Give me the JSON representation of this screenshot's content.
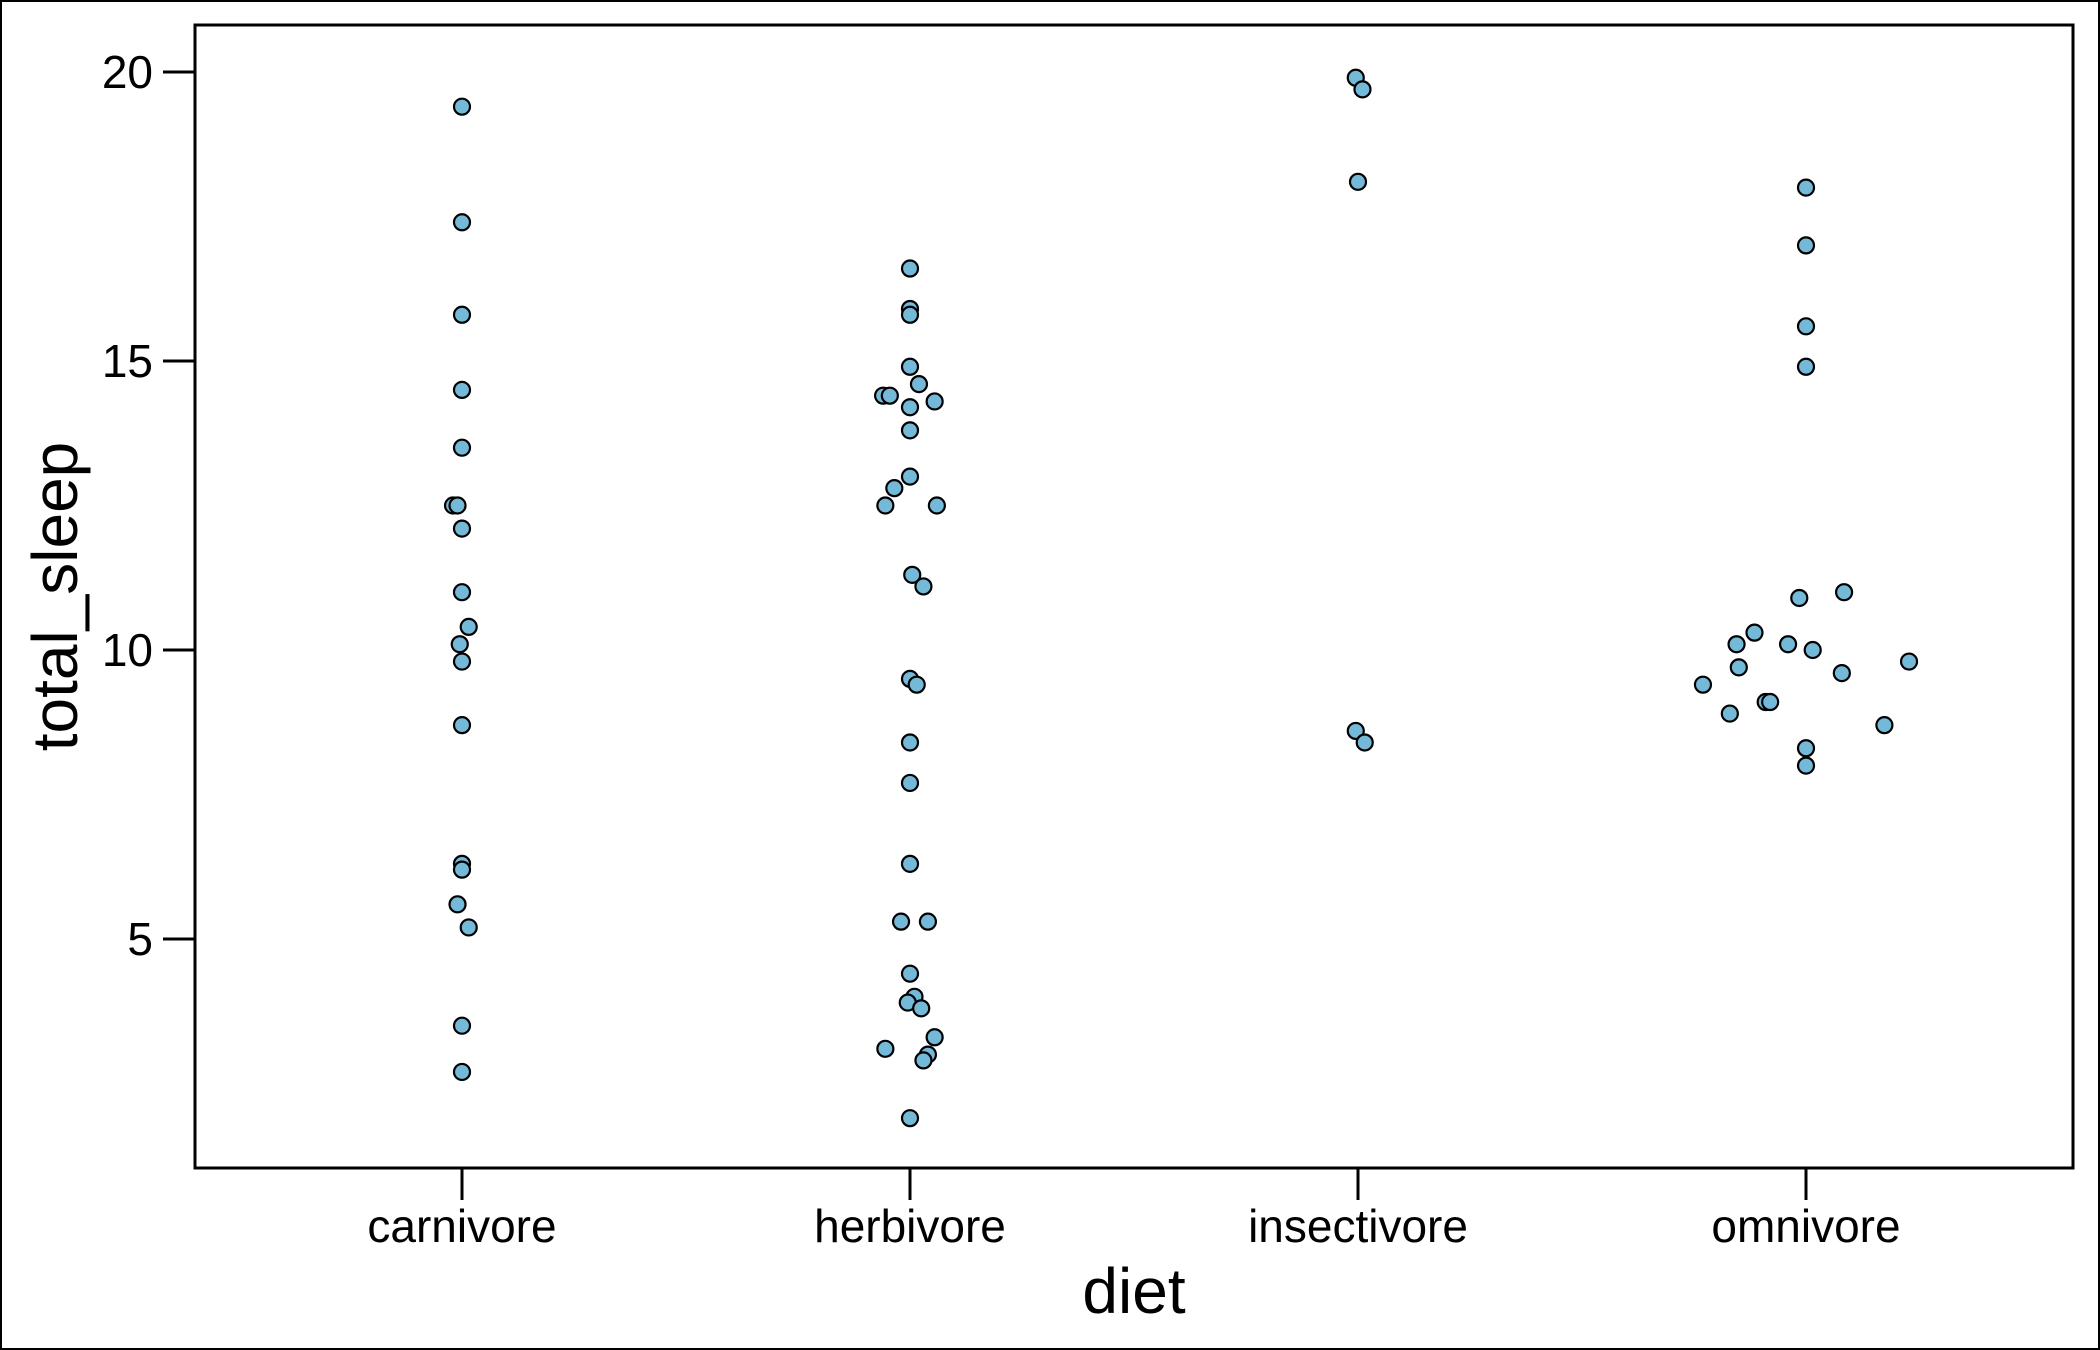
{
  "chart_data": {
    "type": "scatter",
    "xlabel": "diet",
    "ylabel": "total_sleep",
    "categories": [
      "carnivore",
      "herbivore",
      "insectivore",
      "omnivore"
    ],
    "yticks": [
      5,
      10,
      15,
      20
    ],
    "ylim": [
      1.1,
      20.9
    ],
    "grid": false,
    "legend": "none",
    "marker_color": "#74b9d8",
    "marker_edge_color": "#000000",
    "points": [
      {
        "category": "carnivore",
        "jitter": 0.0,
        "y": 19.4
      },
      {
        "category": "carnivore",
        "jitter": 0.0,
        "y": 17.4
      },
      {
        "category": "carnivore",
        "jitter": 0.0,
        "y": 15.8
      },
      {
        "category": "carnivore",
        "jitter": 0.0,
        "y": 14.5
      },
      {
        "category": "carnivore",
        "jitter": 0.0,
        "y": 13.5
      },
      {
        "category": "carnivore",
        "jitter": -0.02,
        "y": 12.5
      },
      {
        "category": "carnivore",
        "jitter": -0.01,
        "y": 12.5
      },
      {
        "category": "carnivore",
        "jitter": 0.0,
        "y": 12.1
      },
      {
        "category": "carnivore",
        "jitter": 0.0,
        "y": 11.0
      },
      {
        "category": "carnivore",
        "jitter": 0.015,
        "y": 10.4
      },
      {
        "category": "carnivore",
        "jitter": -0.005,
        "y": 10.1
      },
      {
        "category": "carnivore",
        "jitter": 0.0,
        "y": 9.8
      },
      {
        "category": "carnivore",
        "jitter": 0.0,
        "y": 8.7
      },
      {
        "category": "carnivore",
        "jitter": 0.0,
        "y": 6.3
      },
      {
        "category": "carnivore",
        "jitter": 0.0,
        "y": 6.2
      },
      {
        "category": "carnivore",
        "jitter": -0.01,
        "y": 5.6
      },
      {
        "category": "carnivore",
        "jitter": 0.015,
        "y": 5.2
      },
      {
        "category": "carnivore",
        "jitter": 0.0,
        "y": 3.5
      },
      {
        "category": "carnivore",
        "jitter": 0.0,
        "y": 2.7
      },
      {
        "category": "herbivore",
        "jitter": 0.0,
        "y": 16.6
      },
      {
        "category": "herbivore",
        "jitter": 0.0,
        "y": 15.9
      },
      {
        "category": "herbivore",
        "jitter": 0.0,
        "y": 15.8
      },
      {
        "category": "herbivore",
        "jitter": 0.0,
        "y": 14.9
      },
      {
        "category": "herbivore",
        "jitter": 0.02,
        "y": 14.6
      },
      {
        "category": "herbivore",
        "jitter": -0.06,
        "y": 14.4
      },
      {
        "category": "herbivore",
        "jitter": -0.045,
        "y": 14.4
      },
      {
        "category": "herbivore",
        "jitter": 0.055,
        "y": 14.3
      },
      {
        "category": "herbivore",
        "jitter": 0.0,
        "y": 14.2
      },
      {
        "category": "herbivore",
        "jitter": 0.0,
        "y": 13.8
      },
      {
        "category": "herbivore",
        "jitter": 0.0,
        "y": 13.0
      },
      {
        "category": "herbivore",
        "jitter": -0.035,
        "y": 12.8
      },
      {
        "category": "herbivore",
        "jitter": -0.055,
        "y": 12.5
      },
      {
        "category": "herbivore",
        "jitter": 0.06,
        "y": 12.5
      },
      {
        "category": "herbivore",
        "jitter": 0.005,
        "y": 11.3
      },
      {
        "category": "herbivore",
        "jitter": 0.03,
        "y": 11.1
      },
      {
        "category": "herbivore",
        "jitter": 0.0,
        "y": 9.5
      },
      {
        "category": "herbivore",
        "jitter": 0.015,
        "y": 9.4
      },
      {
        "category": "herbivore",
        "jitter": 0.0,
        "y": 8.4
      },
      {
        "category": "herbivore",
        "jitter": 0.0,
        "y": 7.7
      },
      {
        "category": "herbivore",
        "jitter": 0.0,
        "y": 6.3
      },
      {
        "category": "herbivore",
        "jitter": -0.02,
        "y": 5.3
      },
      {
        "category": "herbivore",
        "jitter": 0.04,
        "y": 5.3
      },
      {
        "category": "herbivore",
        "jitter": 0.0,
        "y": 4.4
      },
      {
        "category": "herbivore",
        "jitter": 0.01,
        "y": 4.0
      },
      {
        "category": "herbivore",
        "jitter": -0.005,
        "y": 3.9
      },
      {
        "category": "herbivore",
        "jitter": 0.025,
        "y": 3.8
      },
      {
        "category": "herbivore",
        "jitter": 0.055,
        "y": 3.3
      },
      {
        "category": "herbivore",
        "jitter": -0.055,
        "y": 3.1
      },
      {
        "category": "herbivore",
        "jitter": 0.04,
        "y": 3.0
      },
      {
        "category": "herbivore",
        "jitter": 0.03,
        "y": 2.9
      },
      {
        "category": "herbivore",
        "jitter": 0.0,
        "y": 1.9
      },
      {
        "category": "insectivore",
        "jitter": -0.005,
        "y": 19.9
      },
      {
        "category": "insectivore",
        "jitter": 0.01,
        "y": 19.7
      },
      {
        "category": "insectivore",
        "jitter": 0.0,
        "y": 18.1
      },
      {
        "category": "insectivore",
        "jitter": -0.005,
        "y": 8.6
      },
      {
        "category": "insectivore",
        "jitter": 0.015,
        "y": 8.4
      },
      {
        "category": "omnivore",
        "jitter": 0.0,
        "y": 18.0
      },
      {
        "category": "omnivore",
        "jitter": 0.0,
        "y": 17.0
      },
      {
        "category": "omnivore",
        "jitter": 0.0,
        "y": 15.6
      },
      {
        "category": "omnivore",
        "jitter": 0.0,
        "y": 14.9
      },
      {
        "category": "omnivore",
        "jitter": 0.085,
        "y": 11.0
      },
      {
        "category": "omnivore",
        "jitter": -0.015,
        "y": 10.9
      },
      {
        "category": "omnivore",
        "jitter": -0.115,
        "y": 10.3
      },
      {
        "category": "omnivore",
        "jitter": -0.155,
        "y": 10.1
      },
      {
        "category": "omnivore",
        "jitter": -0.04,
        "y": 10.1
      },
      {
        "category": "omnivore",
        "jitter": 0.015,
        "y": 10.0
      },
      {
        "category": "omnivore",
        "jitter": 0.23,
        "y": 9.8
      },
      {
        "category": "omnivore",
        "jitter": -0.15,
        "y": 9.7
      },
      {
        "category": "omnivore",
        "jitter": 0.08,
        "y": 9.6
      },
      {
        "category": "omnivore",
        "jitter": -0.23,
        "y": 9.4
      },
      {
        "category": "omnivore",
        "jitter": -0.09,
        "y": 9.1
      },
      {
        "category": "omnivore",
        "jitter": -0.08,
        "y": 9.1
      },
      {
        "category": "omnivore",
        "jitter": -0.17,
        "y": 8.9
      },
      {
        "category": "omnivore",
        "jitter": 0.175,
        "y": 8.7
      },
      {
        "category": "omnivore",
        "jitter": 0.0,
        "y": 8.3
      },
      {
        "category": "omnivore",
        "jitter": 0.0,
        "y": 8.0
      }
    ]
  }
}
